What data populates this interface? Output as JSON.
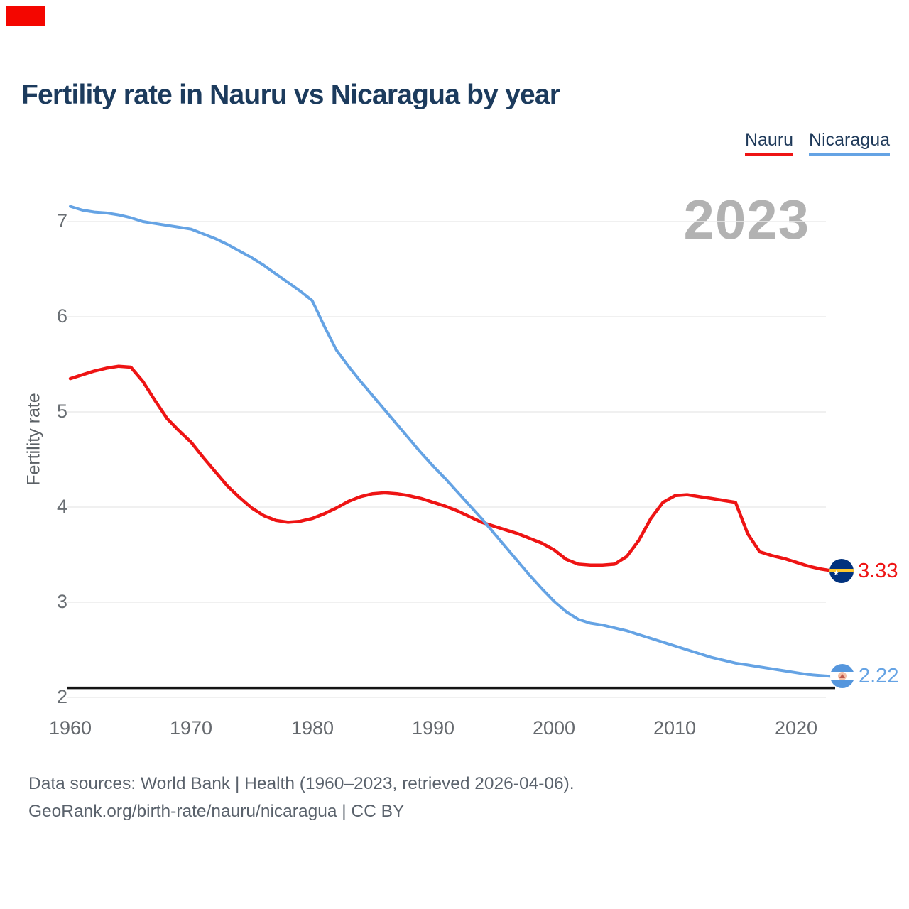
{
  "marker": {
    "color": "#f40600"
  },
  "title": "Fertility rate in Nauru vs Nicaragua by year",
  "watermark_year": "2023",
  "footer": {
    "line1": "Data sources: World Bank | Health (1960–2023, retrieved 2026-04-06).",
    "line2": "GeoRank.org/birth-rate/nauru/nicaragua | CC BY"
  },
  "chart_data": {
    "type": "line",
    "title": "Fertility rate in Nauru vs Nicaragua by year",
    "xlabel": "",
    "ylabel": "Fertility rate",
    "x_start": 1960,
    "x_end": 2023,
    "xticks": [
      1960,
      1970,
      1980,
      1990,
      2000,
      2010,
      2020
    ],
    "yticks": [
      7,
      6,
      5,
      4,
      3,
      2
    ],
    "ylim": [
      2,
      7.3
    ],
    "grid": true,
    "legend_position": "top-right",
    "watermark": "2023",
    "reference_line": {
      "value": 2.1,
      "color": "#141414"
    },
    "series": [
      {
        "name": "Nauru",
        "color": "#ee1414",
        "end_label": "3.33",
        "flag": "nauru",
        "values": [
          5.35,
          5.39,
          5.43,
          5.46,
          5.48,
          5.47,
          5.32,
          5.12,
          4.93,
          4.8,
          4.68,
          4.52,
          4.37,
          4.22,
          4.1,
          3.99,
          3.91,
          3.86,
          3.84,
          3.85,
          3.88,
          3.93,
          3.99,
          4.06,
          4.11,
          4.14,
          4.15,
          4.14,
          4.12,
          4.09,
          4.05,
          4.01,
          3.96,
          3.9,
          3.84,
          3.8,
          3.76,
          3.72,
          3.67,
          3.62,
          3.55,
          3.45,
          3.4,
          3.39,
          3.39,
          3.4,
          3.48,
          3.65,
          3.88,
          4.05,
          4.12,
          4.13,
          4.11,
          4.09,
          4.07,
          4.05,
          3.72,
          3.53,
          3.49,
          3.46,
          3.42,
          3.38,
          3.35,
          3.33
        ]
      },
      {
        "name": "Nicaragua",
        "color": "#65a3e4",
        "end_label": "2.22",
        "flag": "nicaragua",
        "values": [
          7.16,
          7.12,
          7.1,
          7.09,
          7.07,
          7.04,
          7.0,
          6.98,
          6.96,
          6.94,
          6.92,
          6.87,
          6.82,
          6.76,
          6.69,
          6.62,
          6.54,
          6.45,
          6.36,
          6.27,
          6.17,
          5.9,
          5.65,
          5.48,
          5.32,
          5.17,
          5.02,
          4.87,
          4.72,
          4.57,
          4.43,
          4.3,
          4.16,
          4.02,
          3.88,
          3.73,
          3.58,
          3.43,
          3.28,
          3.14,
          3.01,
          2.9,
          2.82,
          2.78,
          2.76,
          2.73,
          2.7,
          2.66,
          2.62,
          2.58,
          2.54,
          2.5,
          2.46,
          2.42,
          2.39,
          2.36,
          2.34,
          2.32,
          2.3,
          2.28,
          2.26,
          2.24,
          2.23,
          2.22
        ]
      }
    ]
  }
}
